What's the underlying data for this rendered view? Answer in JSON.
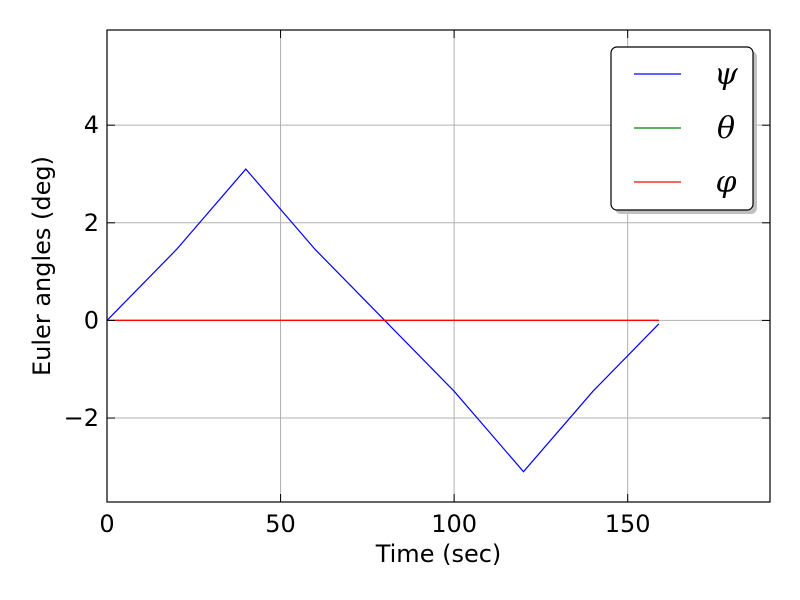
{
  "chart_data": {
    "type": "line",
    "xlabel": "Time (sec)",
    "ylabel": "Euler angles (deg)",
    "xlim": [
      0,
      191
    ],
    "ylim": [
      -3.72,
      5.95
    ],
    "xticks": [
      0,
      50,
      100,
      150
    ],
    "yticks": [
      -2,
      0,
      2,
      4
    ],
    "grid": true,
    "legend_position": "top-right",
    "series": [
      {
        "name": "ψ",
        "color": "#0000ff",
        "x": [
          0,
          20,
          40,
          60,
          80,
          100,
          120,
          140,
          159
        ],
        "y": [
          0,
          1.45,
          3.1,
          1.45,
          0,
          -1.45,
          -3.1,
          -1.45,
          -0.07
        ]
      },
      {
        "name": "θ",
        "color": "#008000",
        "x": [
          0,
          159
        ],
        "y": [
          0,
          0
        ]
      },
      {
        "name": "φ",
        "color": "#ff0000",
        "x": [
          0,
          159
        ],
        "y": [
          0,
          0
        ]
      }
    ]
  }
}
